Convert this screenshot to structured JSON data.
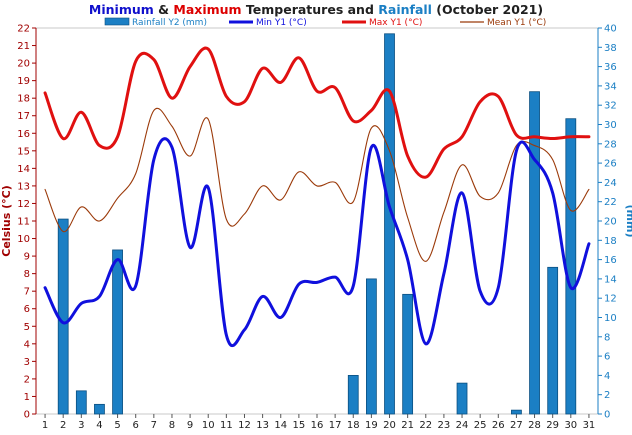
{
  "chart_data": {
    "type": "bar+line",
    "title": {
      "parts": [
        {
          "text": "Minimum",
          "color": "#1010cc"
        },
        {
          "text": " & ",
          "color": "#202020"
        },
        {
          "text": "Maximum",
          "color": "#dd0000"
        },
        {
          "text": " Temperatures and ",
          "color": "#202020"
        },
        {
          "text": "Rainfall",
          "color": "#1b7fc4"
        },
        {
          "text": " (October 2021)",
          "color": "#202020"
        }
      ]
    },
    "x": [
      1,
      2,
      3,
      4,
      5,
      6,
      7,
      8,
      9,
      10,
      11,
      12,
      13,
      14,
      15,
      16,
      17,
      18,
      19,
      20,
      21,
      22,
      23,
      24,
      25,
      26,
      27,
      28,
      29,
      30,
      31
    ],
    "ylabel_left": "Celsius (°C)",
    "ylabel_right": "(mm)",
    "ylim_left": [
      0,
      22
    ],
    "ylim_right": [
      0,
      40
    ],
    "yticks_left": [
      0,
      1,
      2,
      3,
      4,
      5,
      6,
      7,
      8,
      9,
      10,
      11,
      12,
      13,
      14,
      15,
      16,
      17,
      18,
      19,
      20,
      21,
      22
    ],
    "yticks_right": [
      0,
      2,
      4,
      6,
      8,
      10,
      12,
      14,
      16,
      18,
      20,
      22,
      24,
      26,
      28,
      30,
      32,
      34,
      36,
      38,
      40
    ],
    "legend_position": "top",
    "series": [
      {
        "name": "Rainfall Y2 (mm)",
        "kind": "bar",
        "axis": "right",
        "color": "#1b7fc4",
        "values": [
          0,
          20.2,
          2.4,
          1.0,
          17.0,
          0,
          0,
          0,
          0,
          0,
          0,
          0,
          0,
          0,
          0,
          0,
          0,
          4.0,
          14.0,
          39.4,
          12.4,
          0,
          0,
          3.2,
          0,
          0,
          0.4,
          33.4,
          15.2,
          30.6,
          0
        ]
      },
      {
        "name": "Min Y1 (°C)",
        "kind": "line",
        "axis": "left",
        "color": "#1010dd",
        "values": [
          7.2,
          5.2,
          6.3,
          6.7,
          8.8,
          7.3,
          14.5,
          15.2,
          9.5,
          12.9,
          4.5,
          4.8,
          6.7,
          5.5,
          7.4,
          7.5,
          7.8,
          7.3,
          15.2,
          11.8,
          8.8,
          4.0,
          8.0,
          12.6,
          7.0,
          7.2,
          15.0,
          14.5,
          12.6,
          7.2,
          9.7
        ]
      },
      {
        "name": "Max Y1 (°C)",
        "kind": "line",
        "axis": "left",
        "color": "#e01010",
        "values": [
          18.3,
          15.7,
          17.2,
          15.3,
          15.8,
          20.1,
          20.2,
          18.0,
          19.8,
          20.8,
          18.1,
          17.8,
          19.7,
          18.9,
          20.3,
          18.4,
          18.6,
          16.7,
          17.3,
          18.4,
          14.7,
          13.5,
          15.1,
          15.8,
          17.8,
          18.1,
          15.9,
          15.8,
          15.7,
          15.8,
          15.8
        ]
      },
      {
        "name": "Mean Y1 (°C)",
        "kind": "line",
        "axis": "left",
        "color": "#9b3a0a",
        "values": [
          12.8,
          10.4,
          11.8,
          11.0,
          12.3,
          13.7,
          17.3,
          16.4,
          14.7,
          16.8,
          11.1,
          11.4,
          13.0,
          12.2,
          13.8,
          13.0,
          13.2,
          12.1,
          16.3,
          15.0,
          11.2,
          8.7,
          11.5,
          14.2,
          12.4,
          12.6,
          15.3,
          15.3,
          14.5,
          11.6,
          12.8
        ]
      }
    ]
  }
}
